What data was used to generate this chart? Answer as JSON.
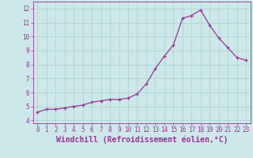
{
  "x": [
    0,
    1,
    2,
    3,
    4,
    5,
    6,
    7,
    8,
    9,
    10,
    11,
    12,
    13,
    14,
    15,
    16,
    17,
    18,
    19,
    20,
    21,
    22,
    23
  ],
  "y": [
    4.6,
    4.8,
    4.8,
    4.9,
    5.0,
    5.1,
    5.3,
    5.4,
    5.5,
    5.5,
    5.6,
    5.9,
    6.6,
    7.7,
    8.6,
    9.4,
    11.3,
    11.5,
    11.9,
    10.8,
    9.9,
    9.2,
    8.5,
    8.3
  ],
  "line_color": "#993399",
  "marker_color": "#993399",
  "bg_color": "#cce8e8",
  "grid_color": "#aad0d0",
  "xlabel": "Windchill (Refroidissement éolien,°C)",
  "xlabel_color": "#993399",
  "ylim": [
    3.8,
    12.5
  ],
  "xlim": [
    -0.5,
    23.5
  ],
  "yticks": [
    4,
    5,
    6,
    7,
    8,
    9,
    10,
    11,
    12
  ],
  "xticks": [
    0,
    1,
    2,
    3,
    4,
    5,
    6,
    7,
    8,
    9,
    10,
    11,
    12,
    13,
    14,
    15,
    16,
    17,
    18,
    19,
    20,
    21,
    22,
    23
  ],
  "tick_color": "#993399",
  "tick_fontsize": 5.5,
  "xlabel_fontsize": 7.0
}
